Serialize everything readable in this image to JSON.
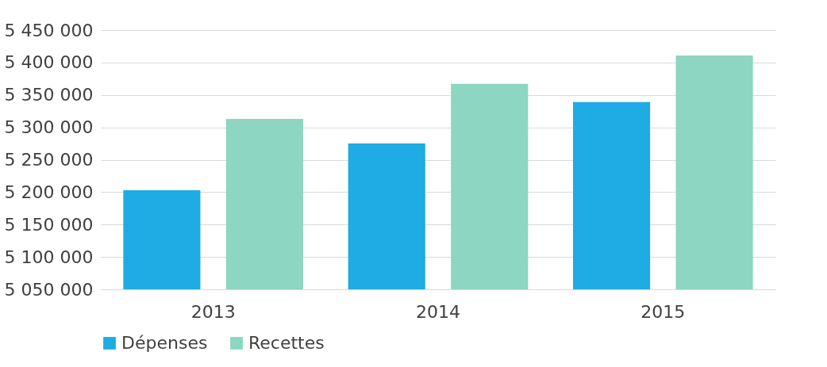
{
  "chart_data": {
    "type": "bar",
    "categories": [
      "2013",
      "2014",
      "2015"
    ],
    "series": [
      {
        "name": "Dépenses",
        "color": "#1fabe3",
        "values": [
          5203000,
          5275000,
          5339000
        ]
      },
      {
        "name": "Recettes",
        "color": "#8dd6c1",
        "values": [
          5313000,
          5367000,
          5411000
        ]
      }
    ],
    "ylim": [
      5050000,
      5450000
    ],
    "yticks": [
      {
        "value": 5050000,
        "label": "5 050 000"
      },
      {
        "value": 5100000,
        "label": "5 100 000"
      },
      {
        "value": 5150000,
        "label": "5 150 000"
      },
      {
        "value": 5200000,
        "label": "5 200 000"
      },
      {
        "value": 5250000,
        "label": "5 250 000"
      },
      {
        "value": 5300000,
        "label": "5 300 000"
      },
      {
        "value": 5350000,
        "label": "5 350 000"
      },
      {
        "value": 5400000,
        "label": "5 400 000"
      },
      {
        "value": 5450000,
        "label": "5 450 000"
      }
    ],
    "grid": "y",
    "legend": "bottom"
  }
}
